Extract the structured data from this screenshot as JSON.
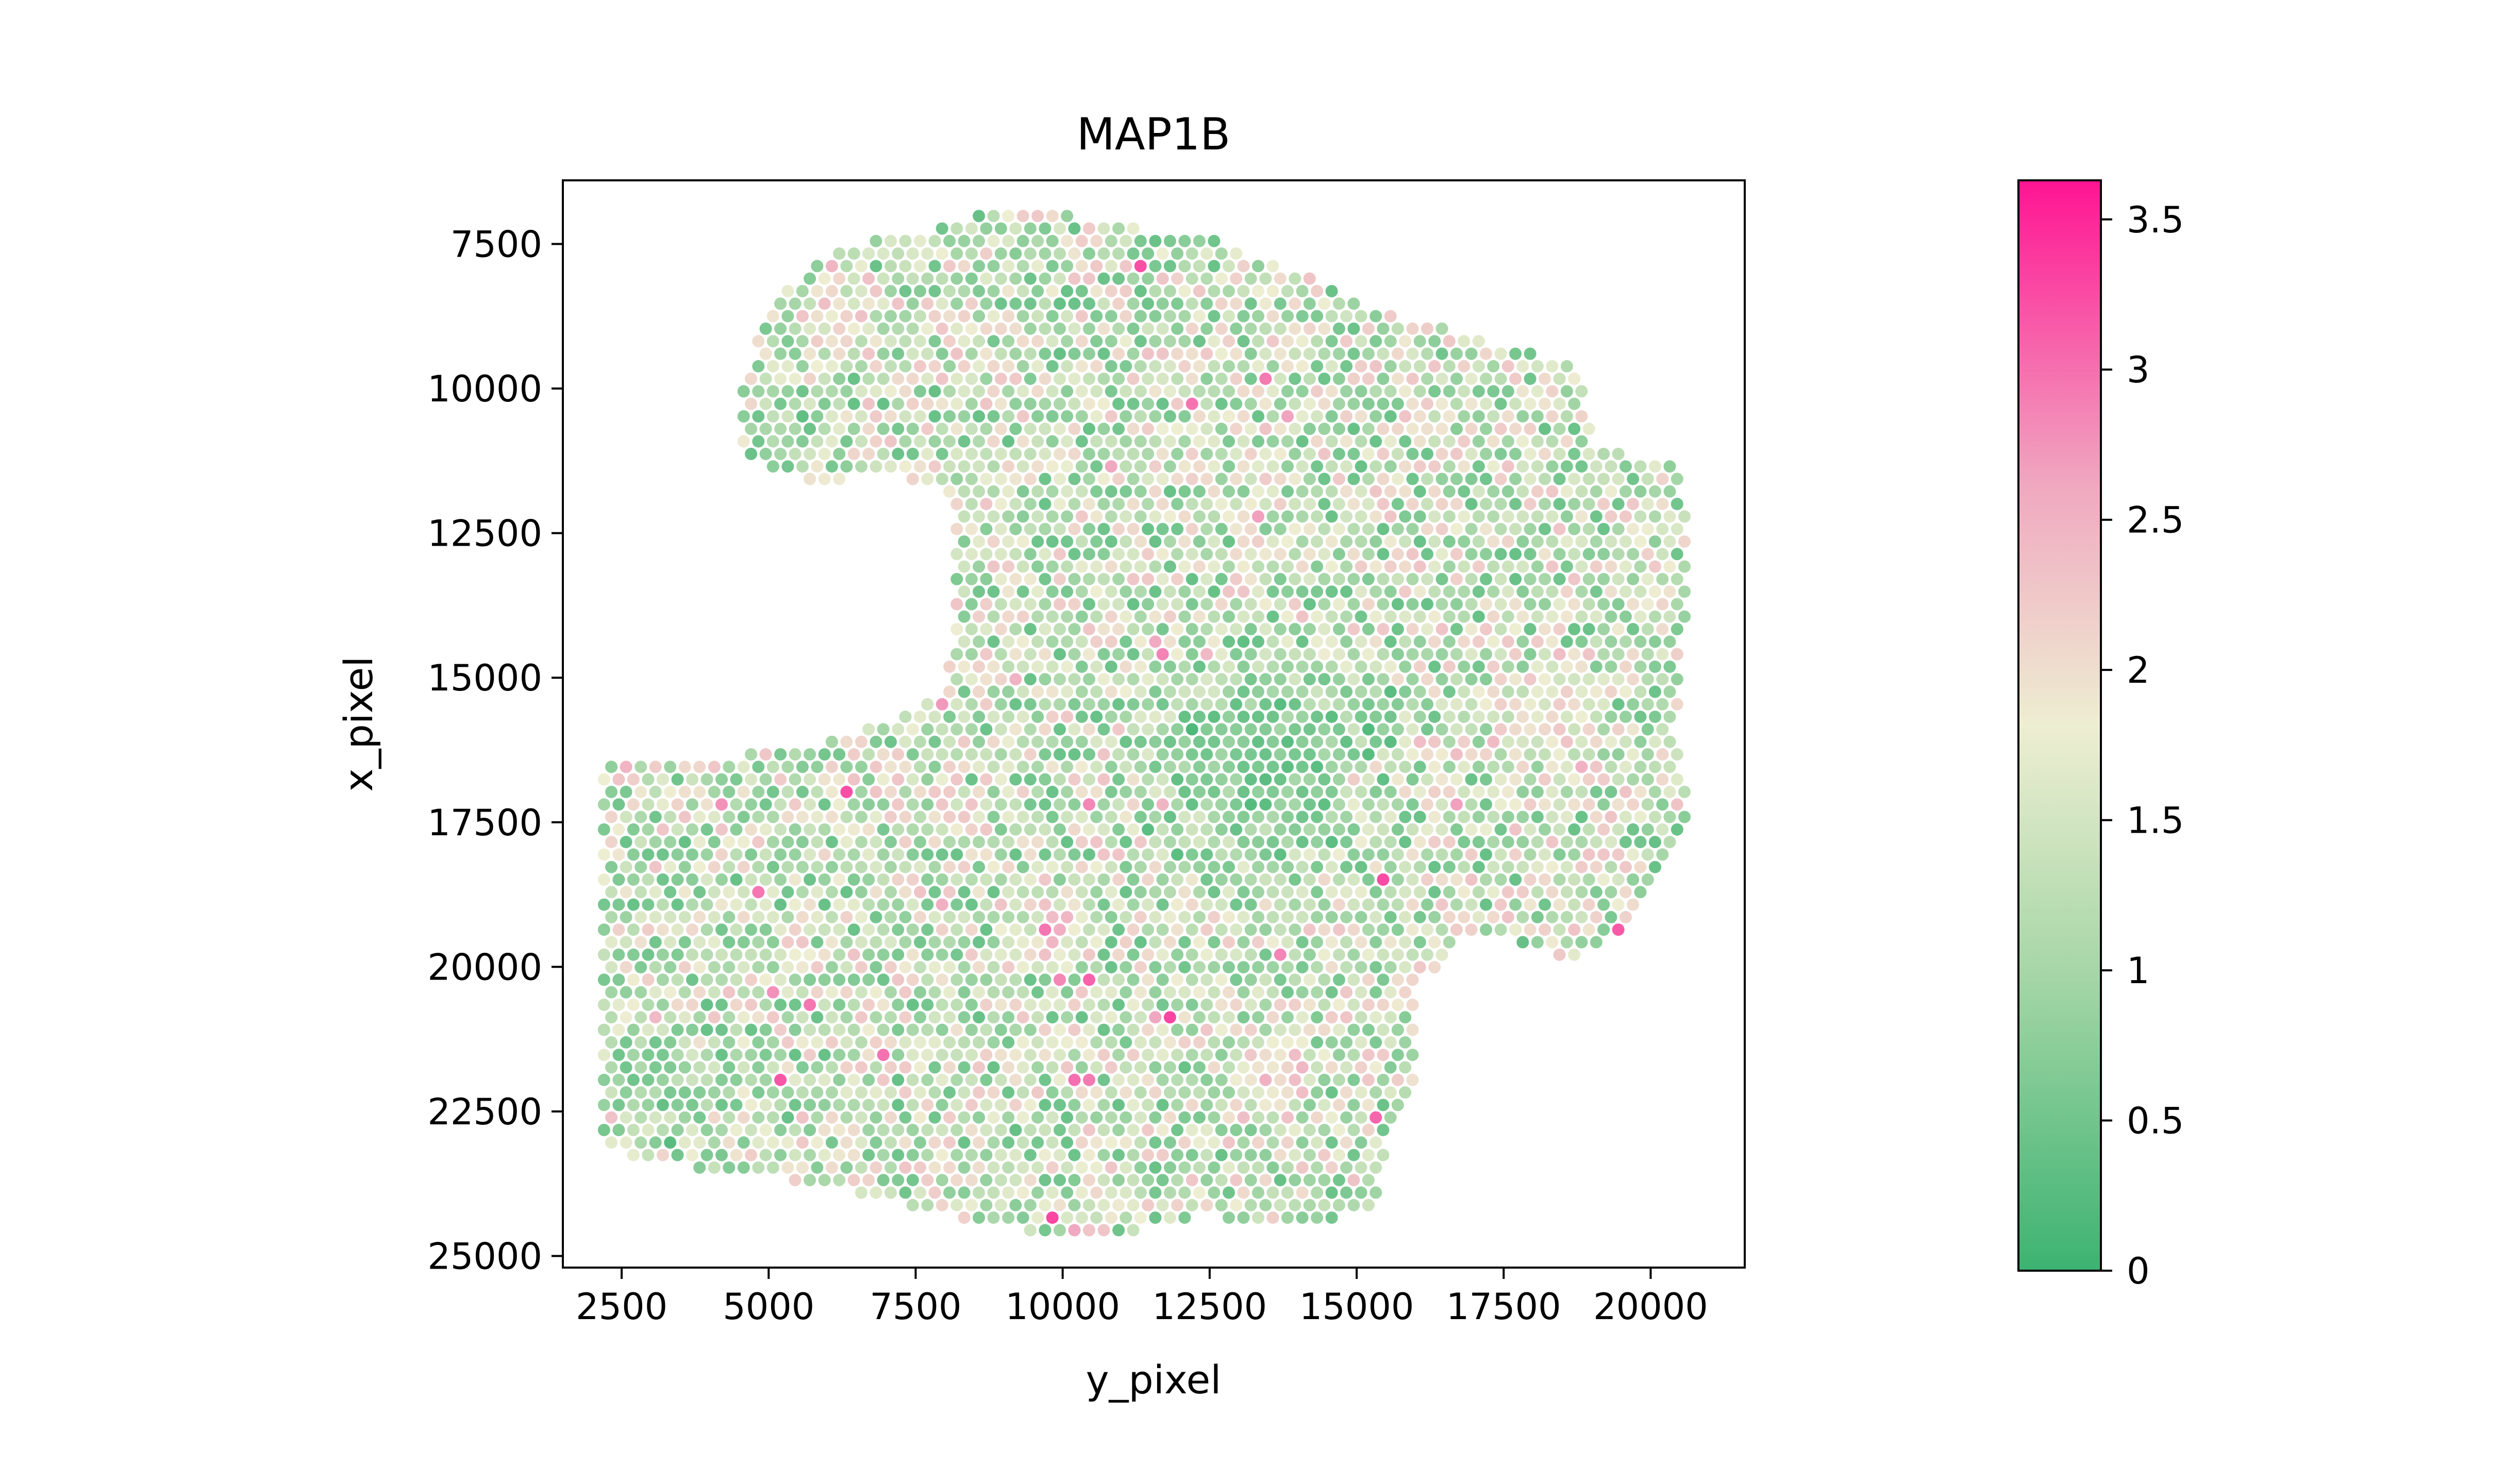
{
  "chart_data": {
    "type": "scatter",
    "title": "MAP1B",
    "xlabel": "y_pixel",
    "ylabel": "x_pixel",
    "xlim": [
      1500,
      21600
    ],
    "ylim": [
      25200,
      6400
    ],
    "y_inverted": true,
    "grid": false,
    "x_ticks": [
      2500,
      5000,
      7500,
      10000,
      12500,
      15000,
      17500,
      20000
    ],
    "y_ticks": [
      7500,
      10000,
      12500,
      15000,
      17500,
      20000,
      22500,
      25000
    ],
    "x_tick_labels": [
      "2500",
      "5000",
      "7500",
      "10000",
      "12500",
      "15000",
      "17500",
      "20000"
    ],
    "y_tick_labels": [
      "7500",
      "10000",
      "12500",
      "15000",
      "17500",
      "20000",
      "22500",
      "25000"
    ],
    "value_range": [
      0,
      3.63
    ],
    "spot_spacing": 250,
    "colorbar": {
      "position": "right",
      "min": 0,
      "max": 3.63,
      "ticks": [
        0,
        0.5,
        1,
        1.5,
        2,
        2.5,
        3,
        3.5
      ],
      "tick_labels": [
        "0",
        "0.5",
        "1",
        "1.5",
        "2",
        "2.5",
        "3",
        "3.5"
      ],
      "colors": [
        "#3cb371",
        "#a5d6a7",
        "#eeeed2",
        "#f0a8c0",
        "#ff1493"
      ]
    },
    "tissue_outline": [
      [
        4500,
        10200
      ],
      [
        5000,
        8500
      ],
      [
        5800,
        7800
      ],
      [
        6500,
        7500
      ],
      [
        7500,
        7300
      ],
      [
        8500,
        7000
      ],
      [
        9500,
        6900
      ],
      [
        11000,
        7200
      ],
      [
        12500,
        7400
      ],
      [
        14000,
        8000
      ],
      [
        15500,
        8700
      ],
      [
        17000,
        9100
      ],
      [
        18800,
        9600
      ],
      [
        19000,
        11000
      ],
      [
        20500,
        11300
      ],
      [
        20700,
        13000
      ],
      [
        20400,
        16000
      ],
      [
        20700,
        17600
      ],
      [
        20100,
        18500
      ],
      [
        19500,
        19500
      ],
      [
        18500,
        19900
      ],
      [
        17500,
        19500
      ],
      [
        16700,
        19500
      ],
      [
        16000,
        20500
      ],
      [
        16000,
        22000
      ],
      [
        15500,
        23200
      ],
      [
        15300,
        24200
      ],
      [
        14000,
        24500
      ],
      [
        12500,
        24300
      ],
      [
        11000,
        24600
      ],
      [
        9500,
        24600
      ],
      [
        8000,
        24300
      ],
      [
        7000,
        24000
      ],
      [
        6000,
        23800
      ],
      [
        4000,
        23500
      ],
      [
        2200,
        23200
      ],
      [
        2200,
        16500
      ],
      [
        3500,
        16500
      ],
      [
        5500,
        16200
      ],
      [
        7000,
        15800
      ],
      [
        8000,
        15200
      ],
      [
        8200,
        14000
      ],
      [
        8200,
        12300
      ],
      [
        8000,
        11700
      ],
      [
        7000,
        11500
      ],
      [
        6000,
        11600
      ],
      [
        5000,
        11500
      ],
      [
        4500,
        11000
      ]
    ],
    "expression_regions": [
      {
        "center": [
          18300,
          15700
        ],
        "radius": 1300,
        "level": 2.2
      },
      {
        "center": [
          10000,
          19200
        ],
        "radius": 900,
        "level": 2.5
      },
      {
        "center": [
          13500,
          21800
        ],
        "radius": 1000,
        "level": 2.4
      },
      {
        "center": [
          6200,
          8800
        ],
        "radius": 1100,
        "level": 2.2
      },
      {
        "center": [
          13500,
          16500
        ],
        "radius": 2700,
        "level": 0.2
      },
      {
        "center": [
          3000,
          21800
        ],
        "radius": 1300,
        "level": 0.4
      },
      {
        "center": [
          5300,
          10800
        ],
        "radius": 900,
        "level": 0.6
      }
    ]
  }
}
